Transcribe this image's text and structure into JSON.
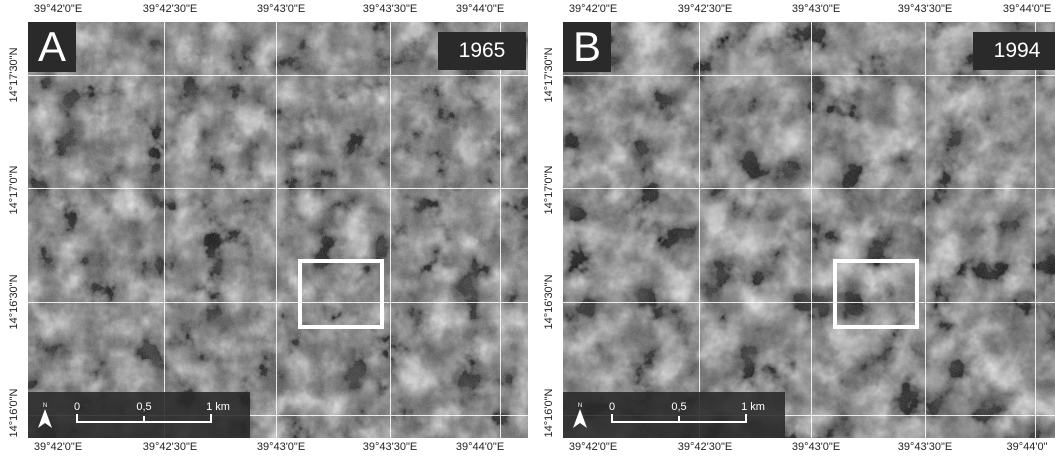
{
  "panels": [
    {
      "letter": "A",
      "year": "1965",
      "top_ticks": [
        "39°42'0\"E",
        "39°42'30\"E",
        "39°43'0\"E",
        "39°43'30\"E",
        "39°44'0\"E"
      ],
      "bottom_ticks": [
        "39°42'0\"E",
        "39°42'30\"E",
        "39°43'0\"E",
        "39°43'30\"E",
        "39°44'0\"E"
      ],
      "left_ticks": [
        "14°17'30\"N",
        "14°17'0\"N",
        "14°16'30\"N",
        "14°16'0\"N"
      ],
      "scale": {
        "north": "N",
        "s0": "0",
        "s1": "0,5",
        "s2": "1 km"
      },
      "tone": "#3c3c3c"
    },
    {
      "letter": "B",
      "year": "1994",
      "top_ticks": [
        "39°42'0\"E",
        "39°42'30\"E",
        "39°43'0\"E",
        "39°43'30\"E",
        "39°44'0\"E"
      ],
      "bottom_ticks": [
        "39°42'0\"E",
        "39°42'30\"E",
        "39°43'0\"E",
        "39°43'30\"E",
        "39°44'0\""
      ],
      "left_ticks": [
        "14°17'30\"N",
        "14°17'0\"N",
        "14°16'30\"N",
        "14°16'0\"N"
      ],
      "scale": {
        "north": "N",
        "s0": "0",
        "s1": "0,5",
        "s2": "1 km"
      },
      "tone": "#2e2e2e"
    }
  ]
}
